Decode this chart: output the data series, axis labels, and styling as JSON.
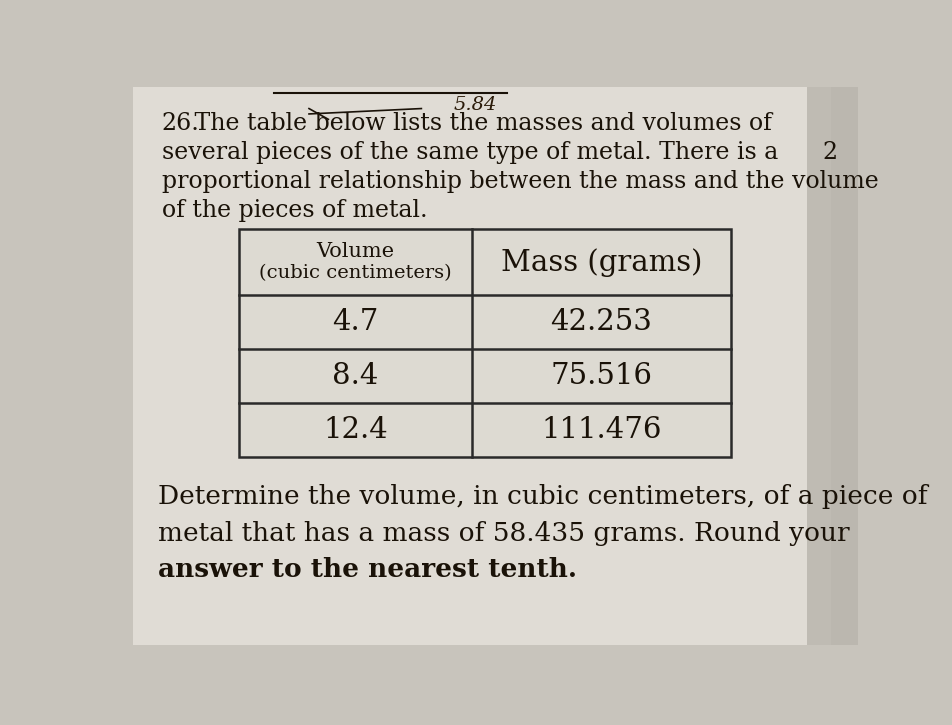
{
  "background_color": "#c8c4bc",
  "paper_color": "#e8e6e0",
  "question_number": "26.",
  "intro_text_line1": " The table below lists the masses and volumes of",
  "intro_text_line2": "several pieces of the same type of metal. There is a",
  "intro_text_line3": "proportional relationship between the mass and the volume",
  "intro_text_line4": "of the pieces of metal.",
  "handwritten_text": "5.84",
  "col1_header_line1": "Volume",
  "col1_header_line2": "(cubic centimeters)",
  "col2_header": "Mass (grams)",
  "table_data": [
    [
      "4.7",
      "42.253"
    ],
    [
      "8.4",
      "75.516"
    ],
    [
      "12.4",
      "111.476"
    ]
  ],
  "footer_text_line1": "Determine the volume, in cubic centimeters, of a piece of",
  "footer_text_line2": "metal that has a mass of 58.435 grams. Round your",
  "footer_text_line3": "answer to the nearest tenth.",
  "side_number": "2",
  "text_color": "#1a1208",
  "table_border_color": "#2a2a2a",
  "table_bg": "#dddad2"
}
